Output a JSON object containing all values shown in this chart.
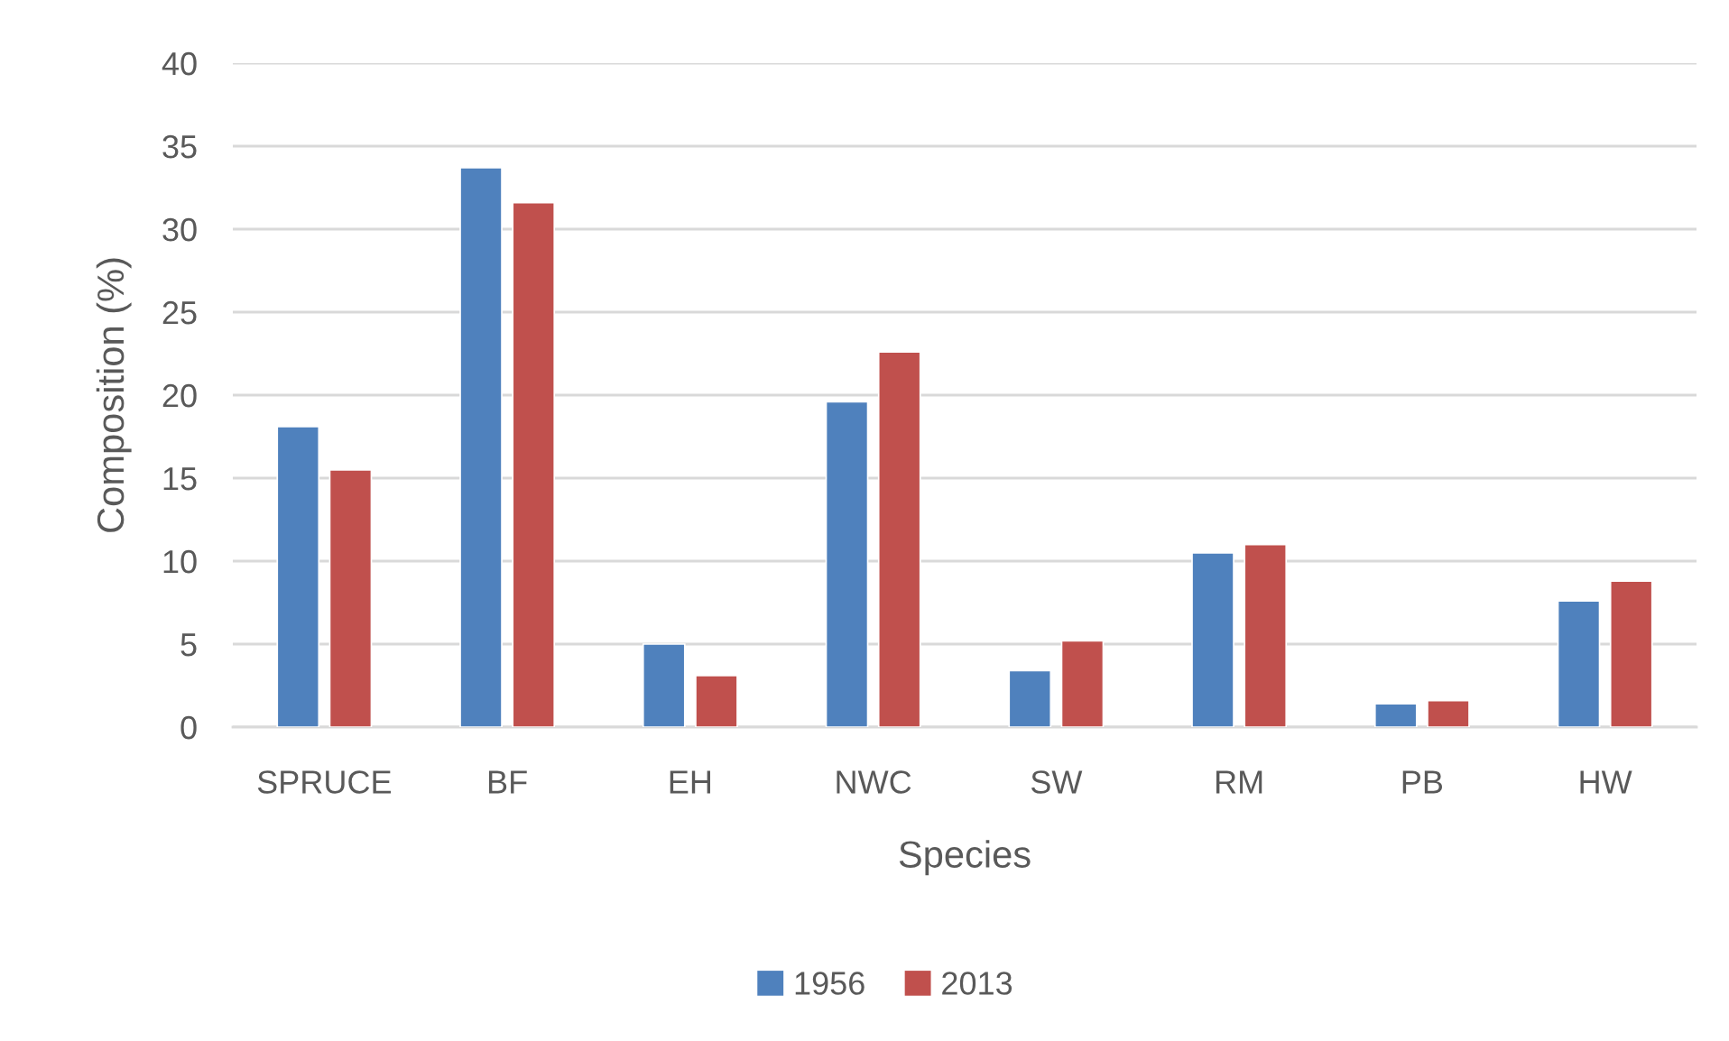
{
  "chart_data": {
    "type": "bar",
    "xlabel": "Species",
    "ylabel": "Composition (%)",
    "categories": [
      "SPRUCE",
      "BF",
      "EH",
      "NWC",
      "SW",
      "RM",
      "PB",
      "HW"
    ],
    "series": [
      {
        "name": "1956",
        "color": "#4f81bd",
        "values": [
          18.1,
          33.7,
          5.0,
          19.6,
          3.4,
          10.5,
          1.4,
          7.6
        ]
      },
      {
        "name": "2013",
        "color": "#c0504d",
        "values": [
          15.5,
          31.6,
          3.1,
          22.6,
          5.2,
          11.0,
          1.6,
          8.8
        ]
      }
    ],
    "ylim": [
      0,
      40
    ],
    "yticks": [
      0,
      5,
      10,
      15,
      20,
      25,
      30,
      35,
      40
    ],
    "grid": "y",
    "legend": "bottom"
  }
}
